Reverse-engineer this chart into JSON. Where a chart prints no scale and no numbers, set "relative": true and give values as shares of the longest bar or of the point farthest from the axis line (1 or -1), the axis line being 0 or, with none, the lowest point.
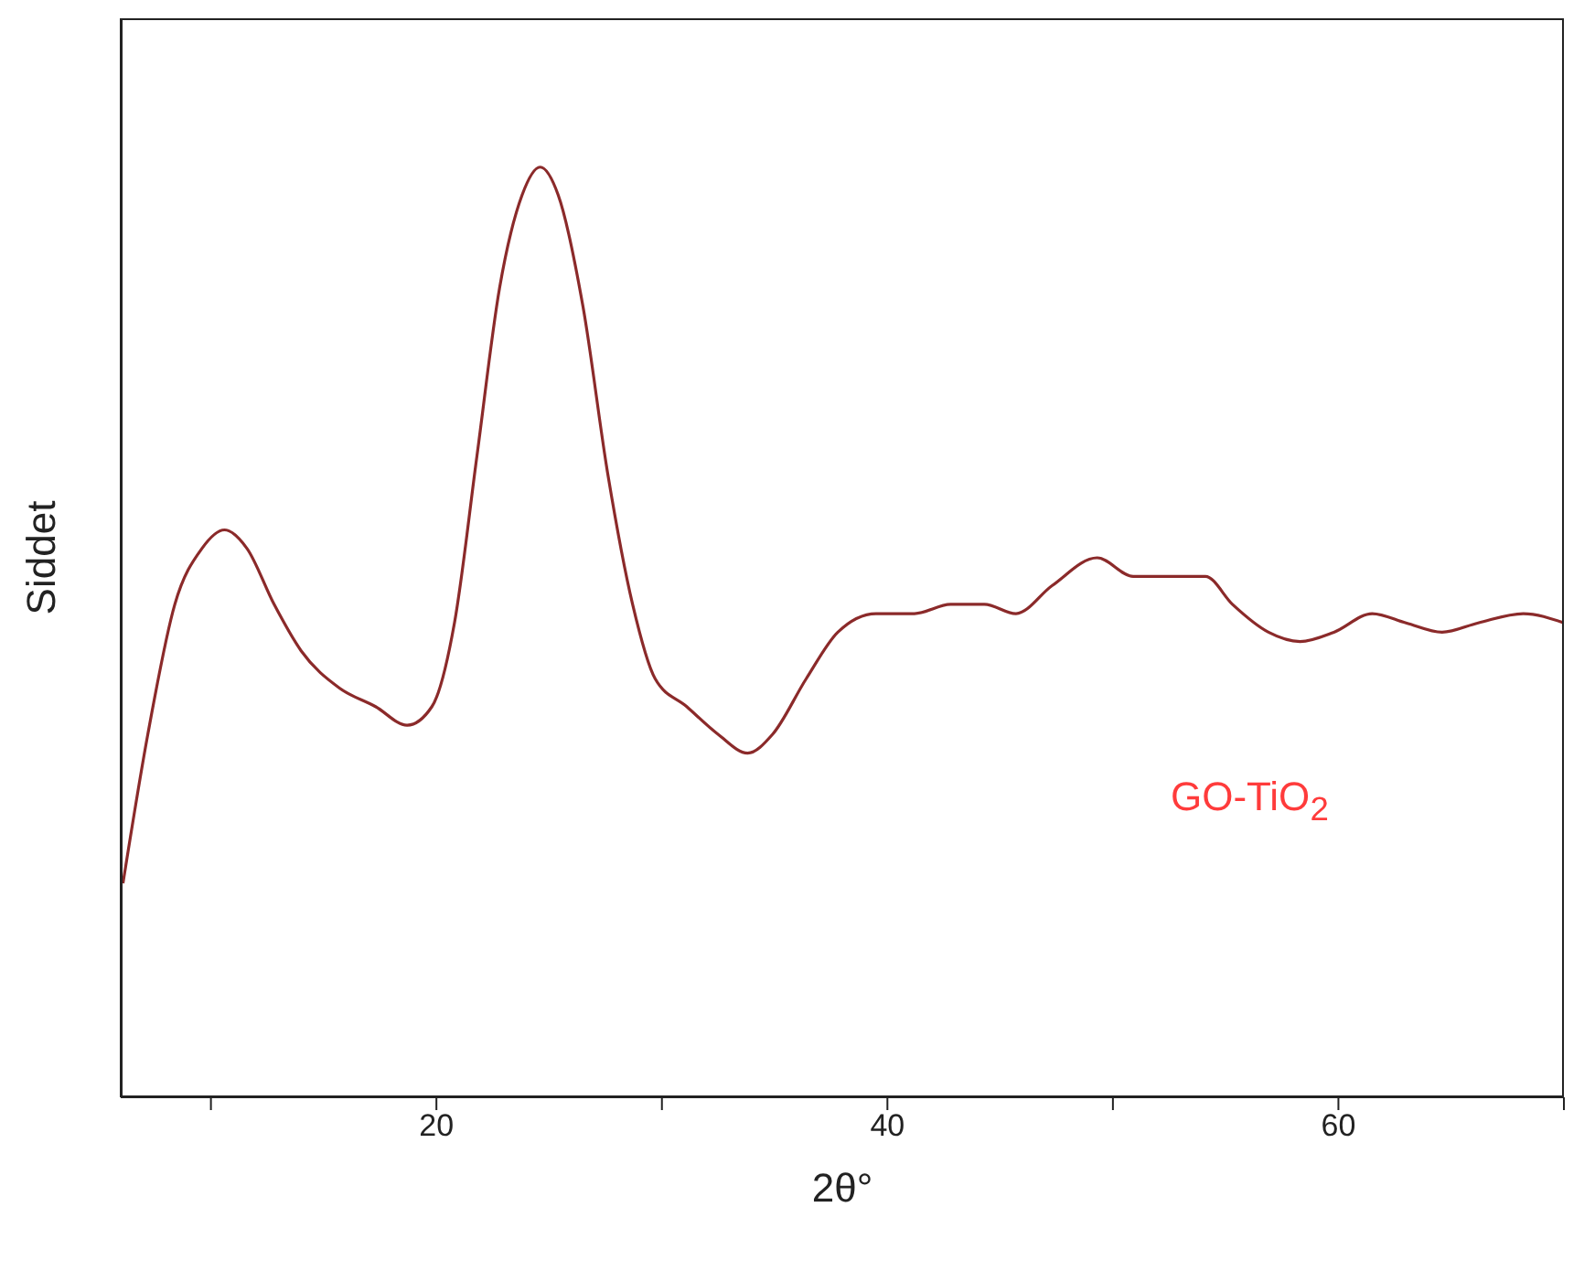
{
  "chart_data": {
    "type": "line",
    "xlabel": "2θ°",
    "ylabel": "Siddet",
    "relative": true,
    "tick_labels": "x",
    "marker": "none",
    "line_style": "solid",
    "xlim": [
      6,
      70
    ],
    "xticks": [
      {
        "value": 10,
        "label": null
      },
      20,
      {
        "value": 30,
        "label": null
      },
      40,
      {
        "value": 50,
        "label": null
      },
      60,
      {
        "value": 70,
        "label": null
      }
    ],
    "annotations": [
      "GO-TiO$_{2}$"
    ],
    "x": [
      6.1,
      7.2,
      8.4,
      9.6,
      10.6,
      11.6,
      12.8,
      14.0,
      15.7,
      17.3,
      18.7,
      19.8,
      20.8,
      21.8,
      22.8,
      23.8,
      24.6,
      25.4,
      26.5,
      27.6,
      28.7,
      29.7,
      31.1,
      32.5,
      33.8,
      34.9,
      36.4,
      37.8,
      39.5,
      41.2,
      42.8,
      44.3,
      45.7,
      47.3,
      49.3,
      50.9,
      52.5,
      54.1,
      55.3,
      56.9,
      58.3,
      59.8,
      61.5,
      63.0,
      64.6,
      66.2,
      68.2,
      70.0
    ],
    "series": [
      {
        "color": "#8b2a2a",
        "values": [
          0.23,
          0.39,
          0.53,
          0.59,
          0.61,
          0.59,
          0.53,
          0.48,
          0.44,
          0.42,
          0.4,
          0.42,
          0.51,
          0.69,
          0.87,
          0.97,
          1.0,
          0.97,
          0.85,
          0.67,
          0.53,
          0.45,
          0.42,
          0.39,
          0.37,
          0.39,
          0.45,
          0.5,
          0.52,
          0.52,
          0.53,
          0.53,
          0.52,
          0.55,
          0.58,
          0.56,
          0.56,
          0.56,
          0.53,
          0.5,
          0.49,
          0.5,
          0.52,
          0.51,
          0.5,
          0.51,
          0.52,
          0.51
        ]
      }
    ]
  }
}
